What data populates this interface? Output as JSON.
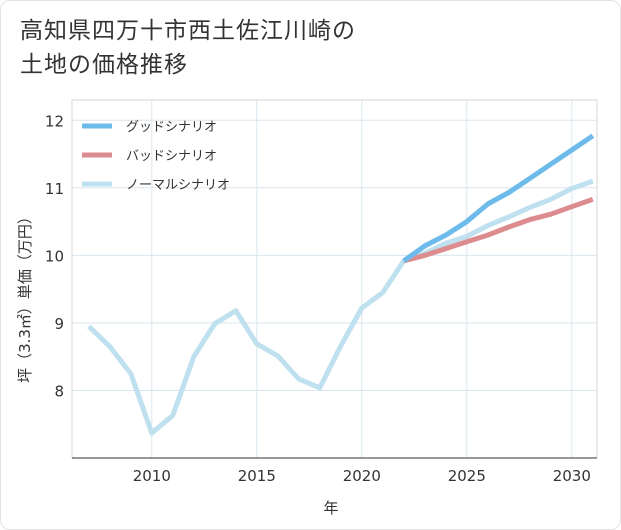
{
  "title_lines": [
    "高知県四万十市西土佐江川崎の",
    "土地の価格推移"
  ],
  "chart_data": {
    "type": "line",
    "xlabel": "年",
    "ylabel": "坪（3.3㎡）単価（万円）",
    "xlim": [
      2006.2,
      2031.2
    ],
    "ylim": [
      7.0,
      12.3
    ],
    "xticks": [
      2010,
      2015,
      2020,
      2025,
      2030
    ],
    "yticks": [
      8,
      9,
      10,
      11,
      12
    ],
    "grid": true,
    "legend_position": "top-left",
    "series": [
      {
        "name": "グッドシナリオ",
        "color": "#6dbbeb",
        "x": [
          2022,
          2023,
          2024,
          2025,
          2026,
          2027,
          2028,
          2029,
          2030,
          2031
        ],
        "values": [
          9.92,
          10.14,
          10.3,
          10.5,
          10.76,
          10.93,
          11.14,
          11.35,
          11.56,
          11.77
        ]
      },
      {
        "name": "バッドシナリオ",
        "color": "#dc8c8f",
        "x": [
          2022,
          2023,
          2024,
          2025,
          2026,
          2027,
          2028,
          2029,
          2030,
          2031
        ],
        "values": [
          9.92,
          10.0,
          10.1,
          10.2,
          10.3,
          10.42,
          10.53,
          10.61,
          10.72,
          10.83
        ]
      },
      {
        "name": "ノーマルシナリオ",
        "color": "#bfe0ef",
        "x": [
          2007,
          2008,
          2009,
          2010,
          2011,
          2012,
          2013,
          2014,
          2015,
          2016,
          2017,
          2018,
          2019,
          2020,
          2021,
          2022,
          2023,
          2024,
          2025,
          2026,
          2027,
          2028,
          2029,
          2030,
          2031
        ],
        "values": [
          8.95,
          8.65,
          8.25,
          7.37,
          7.63,
          8.5,
          8.99,
          9.18,
          8.69,
          8.51,
          8.17,
          8.04,
          8.66,
          9.22,
          9.45,
          9.92,
          10.03,
          10.18,
          10.28,
          10.44,
          10.57,
          10.71,
          10.83,
          10.99,
          11.1
        ]
      }
    ]
  }
}
